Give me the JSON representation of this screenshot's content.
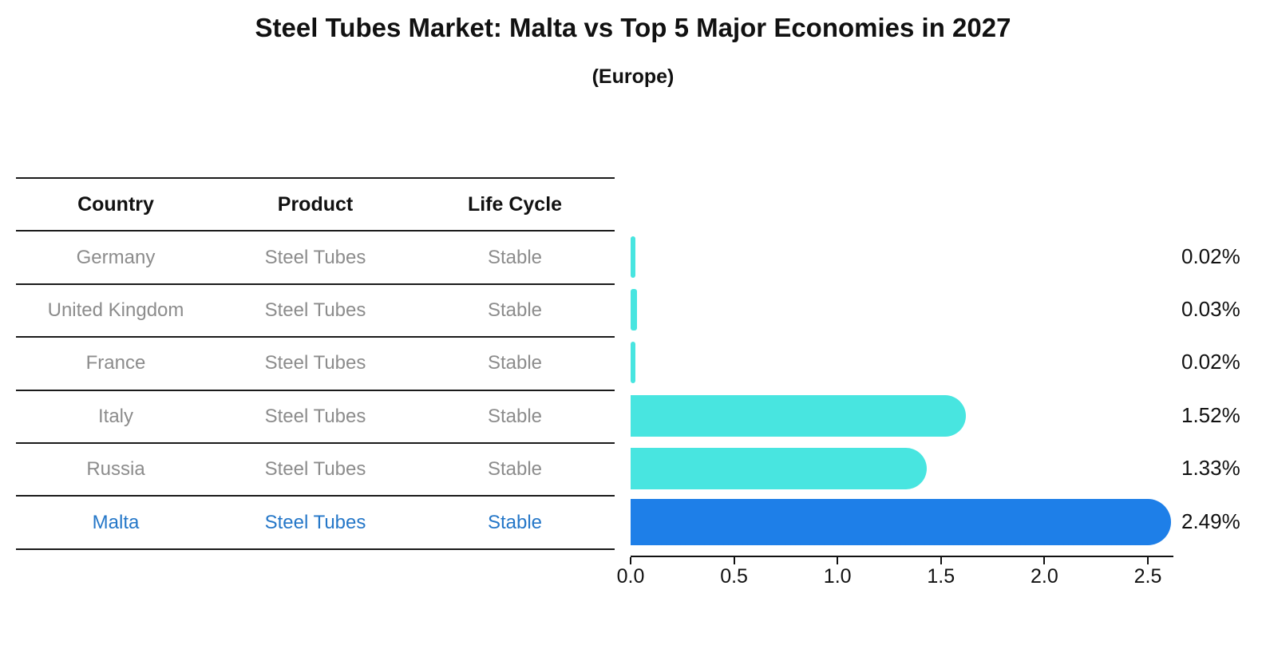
{
  "title": "Steel Tubes Market: Malta vs Top 5 Major Economies in 2027",
  "subtitle": "(Europe)",
  "table": {
    "headers": [
      "Country",
      "Product",
      "Life Cycle"
    ],
    "rows": [
      {
        "country": "Germany",
        "product": "Steel Tubes",
        "life_cycle": "Stable",
        "highlight": false
      },
      {
        "country": "United Kingdom",
        "product": "Steel Tubes",
        "life_cycle": "Stable",
        "highlight": false
      },
      {
        "country": "France",
        "product": "Steel Tubes",
        "life_cycle": "Stable",
        "highlight": false
      },
      {
        "country": "Italy",
        "product": "Steel Tubes",
        "life_cycle": "Stable",
        "highlight": false
      },
      {
        "country": "Russia",
        "product": "Steel Tubes",
        "life_cycle": "Stable",
        "highlight": false
      },
      {
        "country": "Malta",
        "product": "Steel Tubes",
        "life_cycle": "Stable",
        "highlight": true
      }
    ]
  },
  "chart_data": {
    "type": "bar",
    "orientation": "horizontal",
    "title": "Steel Tubes Market: Malta vs Top 5 Major Economies in 2027",
    "subtitle": "(Europe)",
    "categories": [
      "Germany",
      "United Kingdom",
      "France",
      "Italy",
      "Russia",
      "Malta"
    ],
    "values": [
      0.02,
      0.03,
      0.02,
      1.52,
      1.33,
      2.49
    ],
    "value_labels": [
      "0.02%",
      "0.03%",
      "0.02%",
      "1.52%",
      "1.33%",
      "2.49%"
    ],
    "x_ticks": [
      0.0,
      0.5,
      1.0,
      1.5,
      2.0,
      2.5
    ],
    "x_tick_labels": [
      "0.0",
      "0.5",
      "1.0",
      "1.5",
      "2.0",
      "2.5"
    ],
    "xlim": [
      0,
      2.62
    ],
    "grid": false,
    "legend": false,
    "highlight_index": 5,
    "highlight_style": "dotted-edge"
  },
  "colors": {
    "bar_default": "#48e5e0",
    "bar_highlight": "#1e7fe8",
    "highlight_text": "#2577c8",
    "row_text": "#8c8c8c",
    "header_text": "#111111",
    "axis": "#111111",
    "background": "#ffffff"
  }
}
